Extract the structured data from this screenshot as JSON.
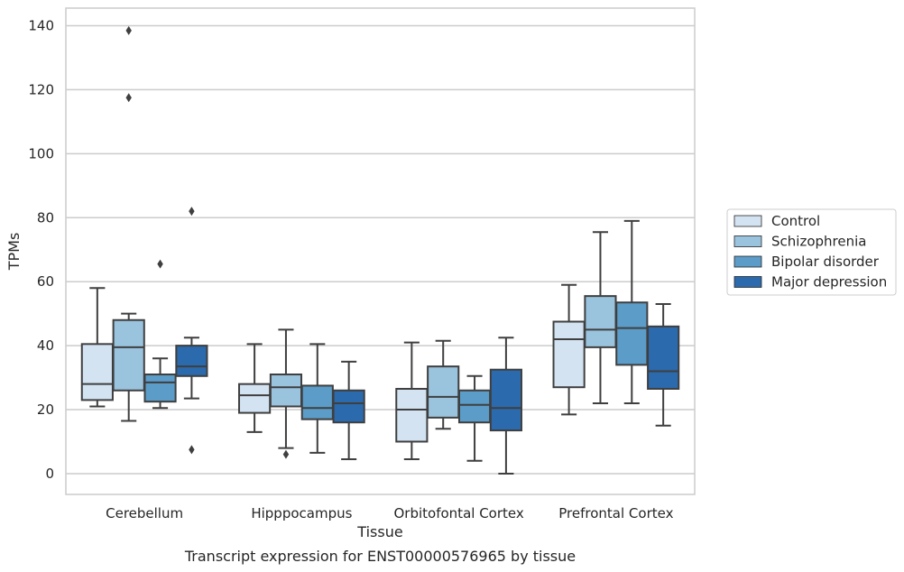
{
  "caption": "Transcript expression for ENST00000576965 by tissue",
  "chart_data": {
    "type": "box",
    "xlabel": "Tissue",
    "ylabel": "TPMs",
    "ylim": [
      -6.5,
      145.5
    ],
    "yticks": [
      0,
      20,
      40,
      60,
      80,
      100,
      120,
      140
    ],
    "grid": true,
    "legend_position": "right",
    "categories": [
      "Cerebellum",
      "Hipppocampus",
      "Orbitofontal Cortex",
      "Prefrontal Cortex"
    ],
    "series": [
      {
        "name": "Control",
        "color": "#d4e3f2",
        "boxes": [
          {
            "whisker_low": 21,
            "q1": 23,
            "median": 28,
            "q3": 40.5,
            "whisker_high": 58,
            "outliers": []
          },
          {
            "whisker_low": 13,
            "q1": 19,
            "median": 24.5,
            "q3": 28,
            "whisker_high": 40.5,
            "outliers": []
          },
          {
            "whisker_low": 4.5,
            "q1": 10,
            "median": 20,
            "q3": 26.5,
            "whisker_high": 41,
            "outliers": []
          },
          {
            "whisker_low": 18.5,
            "q1": 27,
            "median": 42,
            "q3": 47.5,
            "whisker_high": 59,
            "outliers": []
          }
        ]
      },
      {
        "name": "Schizophrenia",
        "color": "#9ac3de",
        "boxes": [
          {
            "whisker_low": 16.5,
            "q1": 26,
            "median": 39.5,
            "q3": 48,
            "whisker_high": 50,
            "outliers": [
              138.5,
              117.5
            ]
          },
          {
            "whisker_low": 8,
            "q1": 21,
            "median": 27,
            "q3": 31,
            "whisker_high": 45,
            "outliers": [
              6
            ]
          },
          {
            "whisker_low": 14,
            "q1": 17.5,
            "median": 24,
            "q3": 33.5,
            "whisker_high": 41.5,
            "outliers": []
          },
          {
            "whisker_low": 22,
            "q1": 39.5,
            "median": 45,
            "q3": 55.5,
            "whisker_high": 75.5,
            "outliers": []
          }
        ]
      },
      {
        "name": "Bipolar disorder",
        "color": "#5b9cc8",
        "boxes": [
          {
            "whisker_low": 20.5,
            "q1": 22.5,
            "median": 28.5,
            "q3": 31,
            "whisker_high": 36,
            "outliers": [
              65.5
            ]
          },
          {
            "whisker_low": 6.5,
            "q1": 17,
            "median": 20.5,
            "q3": 27.5,
            "whisker_high": 40.5,
            "outliers": []
          },
          {
            "whisker_low": 4,
            "q1": 16,
            "median": 21.5,
            "q3": 26,
            "whisker_high": 30.5,
            "outliers": []
          },
          {
            "whisker_low": 22,
            "q1": 34,
            "median": 45.5,
            "q3": 53.5,
            "whisker_high": 79,
            "outliers": []
          }
        ]
      },
      {
        "name": "Major depression",
        "color": "#2b6aac",
        "boxes": [
          {
            "whisker_low": 23.5,
            "q1": 30.5,
            "median": 33.5,
            "q3": 40,
            "whisker_high": 42.5,
            "outliers": [
              82,
              7.5
            ]
          },
          {
            "whisker_low": 4.5,
            "q1": 16,
            "median": 22,
            "q3": 26,
            "whisker_high": 35,
            "outliers": []
          },
          {
            "whisker_low": 0,
            "q1": 13.5,
            "median": 20.5,
            "q3": 32.5,
            "whisker_high": 42.5,
            "outliers": []
          },
          {
            "whisker_low": 15,
            "q1": 26.5,
            "median": 32,
            "q3": 46,
            "whisker_high": 53,
            "outliers": []
          }
        ]
      }
    ]
  }
}
